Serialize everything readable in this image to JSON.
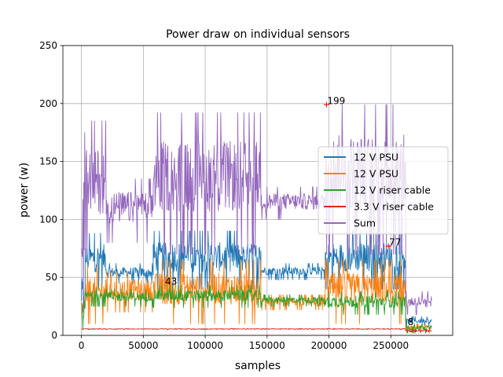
{
  "chart_data": {
    "type": "line",
    "title": "Power draw on individual sensors",
    "xlabel": "samples",
    "ylabel": "power (w)",
    "xlim": [
      -15000,
      300000
    ],
    "ylim": [
      0,
      250
    ],
    "x_ticks": [
      0,
      50000,
      100000,
      150000,
      200000,
      250000
    ],
    "x_tick_labels": [
      "0",
      "50000",
      "100000",
      "150000",
      "200000",
      "250000"
    ],
    "y_ticks": [
      0,
      50,
      100,
      150,
      200,
      250
    ],
    "y_tick_labels": [
      "0",
      "50",
      "100",
      "150",
      "200",
      "250"
    ],
    "grid": true,
    "legend_position": "center-right",
    "series": [
      {
        "name": "12 V PSU",
        "color": "#1f77b4",
        "segments": [
          {
            "x0": 0,
            "x1": 3000,
            "low": 5,
            "high": 60
          },
          {
            "x0": 3000,
            "x1": 20000,
            "low": 40,
            "high": 88
          },
          {
            "x0": 20000,
            "x1": 58000,
            "low": 45,
            "high": 62
          },
          {
            "x0": 58000,
            "x1": 145000,
            "low": 40,
            "high": 90
          },
          {
            "x0": 145000,
            "x1": 197000,
            "low": 48,
            "high": 62
          },
          {
            "x0": 197000,
            "x1": 262000,
            "low": 40,
            "high": 90
          },
          {
            "x0": 262000,
            "x1": 283000,
            "low": 8,
            "high": 16
          }
        ]
      },
      {
        "name": "12 V PSU",
        "color": "#ff7f0e",
        "segments": [
          {
            "x0": 0,
            "x1": 3000,
            "low": 5,
            "high": 40
          },
          {
            "x0": 3000,
            "x1": 20000,
            "low": 10,
            "high": 60
          },
          {
            "x0": 20000,
            "x1": 58000,
            "low": 20,
            "high": 55
          },
          {
            "x0": 58000,
            "x1": 145000,
            "low": 10,
            "high": 65
          },
          {
            "x0": 145000,
            "x1": 197000,
            "low": 22,
            "high": 35
          },
          {
            "x0": 197000,
            "x1": 262000,
            "low": 10,
            "high": 65
          },
          {
            "x0": 262000,
            "x1": 283000,
            "low": 2,
            "high": 10
          }
        ]
      },
      {
        "name": "12 V riser cable",
        "color": "#2ca02c",
        "segments": [
          {
            "x0": 0,
            "x1": 3000,
            "low": 5,
            "high": 35
          },
          {
            "x0": 3000,
            "x1": 20000,
            "low": 25,
            "high": 42
          },
          {
            "x0": 20000,
            "x1": 58000,
            "low": 25,
            "high": 40
          },
          {
            "x0": 58000,
            "x1": 145000,
            "low": 24,
            "high": 43
          },
          {
            "x0": 145000,
            "x1": 197000,
            "low": 25,
            "high": 35
          },
          {
            "x0": 197000,
            "x1": 262000,
            "low": 18,
            "high": 38
          },
          {
            "x0": 262000,
            "x1": 283000,
            "low": 2,
            "high": 10
          }
        ]
      },
      {
        "name": "3.3 V riser cable",
        "color": "#d62728",
        "segments": [
          {
            "x0": 0,
            "x1": 262000,
            "low": 5,
            "high": 6
          },
          {
            "x0": 262000,
            "x1": 283000,
            "low": 3,
            "high": 5
          }
        ]
      },
      {
        "name": "Sum",
        "color": "#9467bd",
        "segments": [
          {
            "x0": 0,
            "x1": 3000,
            "low": 20,
            "high": 175
          },
          {
            "x0": 3000,
            "x1": 20000,
            "low": 70,
            "high": 185
          },
          {
            "x0": 20000,
            "x1": 58000,
            "low": 80,
            "high": 135
          },
          {
            "x0": 58000,
            "x1": 145000,
            "low": 70,
            "high": 192
          },
          {
            "x0": 145000,
            "x1": 197000,
            "low": 100,
            "high": 128
          },
          {
            "x0": 197000,
            "x1": 262000,
            "low": 70,
            "high": 199
          },
          {
            "x0": 262000,
            "x1": 283000,
            "low": 18,
            "high": 38
          }
        ]
      }
    ],
    "annotations": [
      {
        "text": "199",
        "x": 198000,
        "y": 199,
        "marker": true
      },
      {
        "text": "77",
        "x": 248000,
        "y": 77,
        "marker": true
      },
      {
        "text": "43",
        "x": 67000,
        "y": 43,
        "marker": false
      },
      {
        "text": "8",
        "x": 263000,
        "y": 8,
        "marker": false
      }
    ]
  }
}
